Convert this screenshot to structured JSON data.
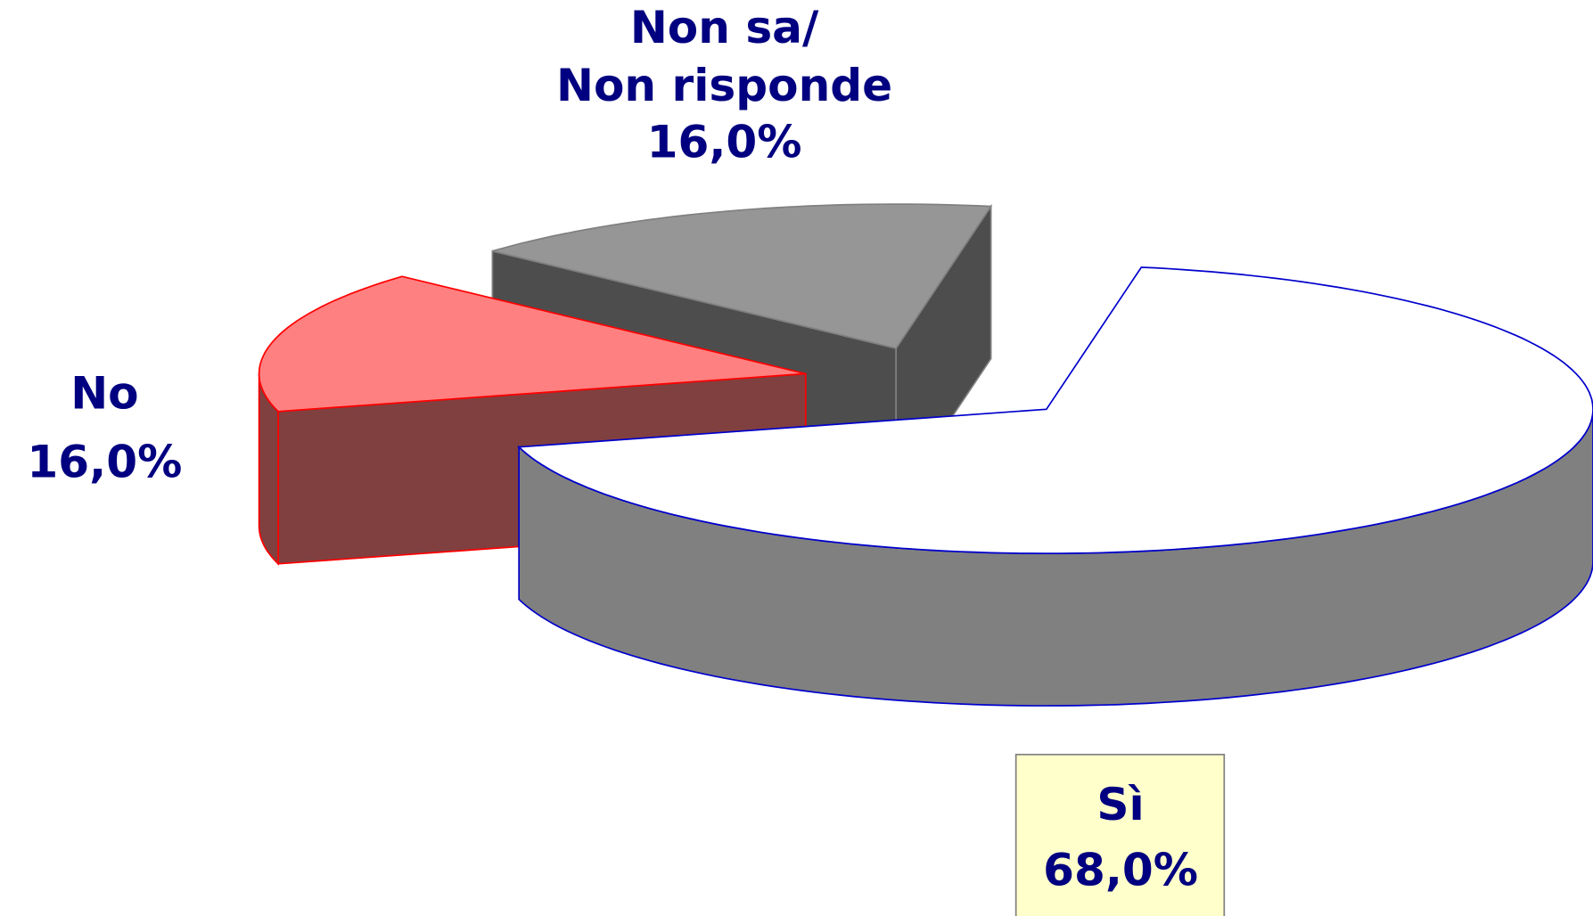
{
  "chart_data": {
    "type": "pie",
    "categories": [
      "Sì",
      "No",
      "Non sa/\nNon risponde"
    ],
    "values": [
      68,
      16,
      16
    ],
    "value_labels": [
      "68,0%",
      "16,0%",
      "16,0%"
    ],
    "colors": [
      "#ffffff",
      "#ff8080",
      "#969696"
    ],
    "side_colors": [
      "#808080",
      "#804040",
      "#4d4d4d"
    ],
    "edge_colors": [
      "#0000cc",
      "#ff0000",
      "#808080"
    ]
  }
}
